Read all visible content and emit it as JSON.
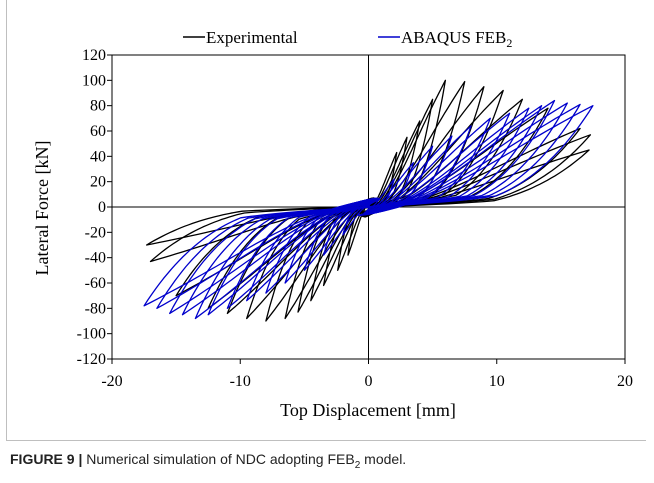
{
  "chart_data": {
    "type": "line",
    "title": "",
    "xlabel": "Top Displacement [mm]",
    "ylabel": "Lateral Force [kN]",
    "xlim": [
      -20,
      20
    ],
    "ylim": [
      -120,
      120
    ],
    "xticks": [
      -20,
      -10,
      0,
      10,
      20
    ],
    "yticks": [
      -120,
      -100,
      -80,
      -60,
      -40,
      -20,
      0,
      20,
      40,
      60,
      80,
      100,
      120
    ],
    "xtick_labels": [
      "-20",
      "-10",
      "0",
      "10",
      "20"
    ],
    "ytick_labels": [
      "-120",
      "-100",
      "-80",
      "-60",
      "-40",
      "-20",
      "0",
      "20",
      "40",
      "60",
      "80",
      "100",
      "120"
    ],
    "grid": false,
    "legend_position": "top",
    "series": [
      {
        "name": "Experimental",
        "color": "#000000",
        "cycles": [
          {
            "xmax": 2.2,
            "fmax": 43,
            "xmin": -1.6,
            "fmin": -38
          },
          {
            "xmax": 3.0,
            "fmax": 55,
            "xmin": -2.4,
            "fmin": -50
          },
          {
            "xmax": 4.0,
            "fmax": 68,
            "xmin": -3.5,
            "fmin": -62
          },
          {
            "xmax": 5.0,
            "fmax": 85,
            "xmin": -4.5,
            "fmin": -74
          },
          {
            "xmax": 6.0,
            "fmax": 100,
            "xmin": -5.5,
            "fmin": -83
          },
          {
            "xmax": 7.5,
            "fmax": 99,
            "xmin": -6.5,
            "fmin": -88
          },
          {
            "xmax": 9.0,
            "fmax": 95,
            "xmin": -8.0,
            "fmin": -90
          },
          {
            "xmax": 10.5,
            "fmax": 92,
            "xmin": -9.5,
            "fmin": -88
          },
          {
            "xmax": 12.0,
            "fmax": 85,
            "xmin": -11.0,
            "fmin": -84
          },
          {
            "xmax": 14.0,
            "fmax": 78,
            "xmin": -12.5,
            "fmin": -80
          },
          {
            "xmax": 16.5,
            "fmax": 62,
            "xmin": -15.0,
            "fmin": -70
          },
          {
            "xmax": 17.3,
            "fmax": 57,
            "xmin": -17.0,
            "fmin": -43
          },
          {
            "xmax": 17.2,
            "fmax": 45,
            "xmin": -17.3,
            "fmin": -30
          }
        ]
      },
      {
        "name": "ABAQUS FEB2",
        "color": "#0000cc",
        "cycles": [
          {
            "xmax": 2.0,
            "fmax": 22,
            "xmin": -2.0,
            "fmin": -22
          },
          {
            "xmax": 3.5,
            "fmax": 35,
            "xmin": -3.5,
            "fmin": -38
          },
          {
            "xmax": 5.0,
            "fmax": 48,
            "xmin": -5.0,
            "fmin": -50
          },
          {
            "xmax": 6.5,
            "fmax": 56,
            "xmin": -6.5,
            "fmin": -60
          },
          {
            "xmax": 8.0,
            "fmax": 64,
            "xmin": -8.0,
            "fmin": -68
          },
          {
            "xmax": 9.5,
            "fmax": 70,
            "xmin": -9.5,
            "fmin": -74
          },
          {
            "xmax": 11.0,
            "fmax": 74,
            "xmin": -11.0,
            "fmin": -80
          },
          {
            "xmax": 12.5,
            "fmax": 78,
            "xmin": -12.5,
            "fmin": -85
          },
          {
            "xmax": 13.5,
            "fmax": 80,
            "xmin": -13.5,
            "fmin": -88
          },
          {
            "xmax": 14.5,
            "fmax": 84,
            "xmin": -14.5,
            "fmin": -85
          },
          {
            "xmax": 15.5,
            "fmax": 82,
            "xmin": -15.5,
            "fmin": -84
          },
          {
            "xmax": 16.5,
            "fmax": 81,
            "xmin": -16.5,
            "fmin": -80
          },
          {
            "xmax": 17.5,
            "fmax": 80,
            "xmin": -17.5,
            "fmin": -78
          }
        ]
      }
    ]
  },
  "legend": {
    "experimental": "Experimental",
    "abaqus": "ABAQUS FEB",
    "abaqus_sub": "2"
  },
  "caption": {
    "label": "FIGURE 9 |",
    "text_before": " Numerical simulation of NDC adopting FEB",
    "sub": "2",
    "text_after": " model."
  }
}
